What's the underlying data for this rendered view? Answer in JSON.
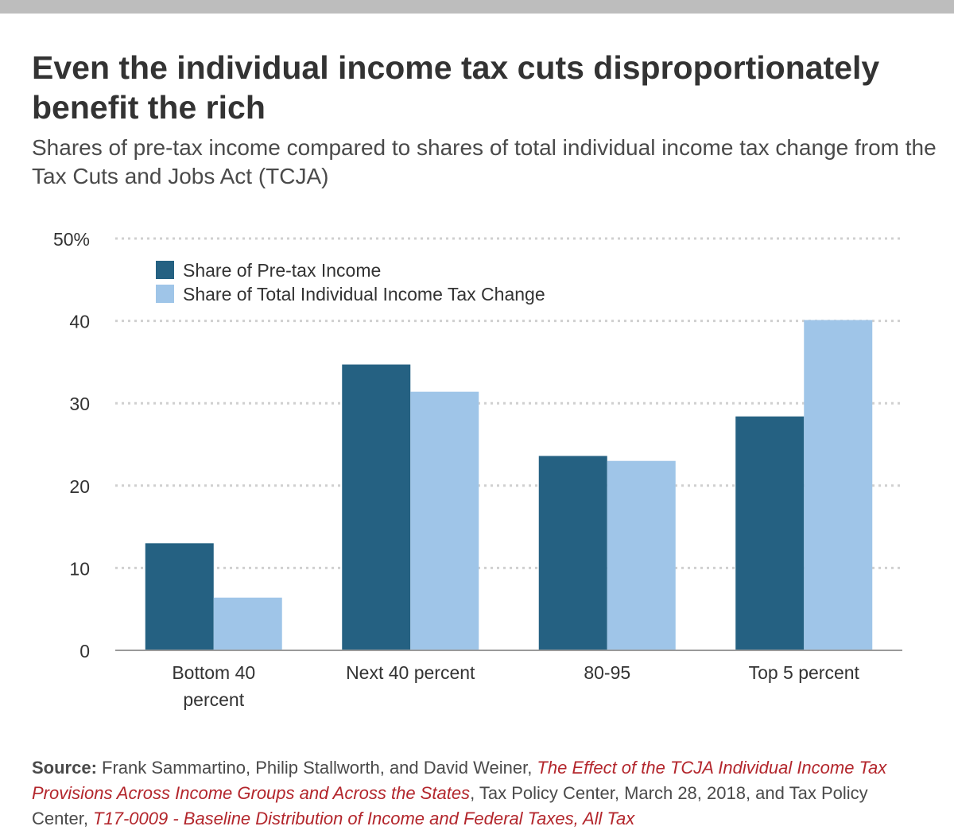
{
  "header": {
    "title": "Even the individual income tax cuts disproportionately benefit the rich",
    "subtitle": "Shares of pre-tax income compared to shares of total individual income tax change from the Tax Cuts and Jobs Act (TCJA)"
  },
  "source": {
    "label": "Source:",
    "text1": " Frank Sammartino, Philip Stallworth, and David Weiner, ",
    "ref1": "The Effect of the TCJA Individual Income Tax Provisions Across Income Groups and Across the States",
    "text2": ", Tax Policy Center, March 28, 2018, and Tax Policy Center, ",
    "ref2": "T17-0009 - Baseline Distribution of Income and Federal Taxes, All Tax"
  },
  "colors": {
    "series1": "#256182",
    "series2": "#9fc5e8",
    "grid": "#d0d0d0",
    "axis": "#9a9a9a",
    "text": "#333333"
  },
  "chart_data": {
    "type": "bar",
    "categories": [
      "Bottom 40 percent",
      "Next 40 percent",
      "80-95",
      "Top 5 percent"
    ],
    "category_lines": [
      [
        "Bottom 40",
        "percent"
      ],
      [
        "Next 40 percent"
      ],
      [
        "80-95"
      ],
      [
        "Top 5 percent"
      ]
    ],
    "series": [
      {
        "name": "Share of Pre-tax Income",
        "values": [
          13.0,
          34.7,
          23.6,
          28.4
        ]
      },
      {
        "name": "Share of Total Individual Income Tax Change",
        "values": [
          6.4,
          31.4,
          23.0,
          40.1
        ]
      }
    ],
    "yticks": [
      0,
      10,
      20,
      30,
      40,
      50
    ],
    "ytick_labels": [
      "0",
      "10",
      "20",
      "30",
      "40",
      "50%"
    ],
    "ylim": [
      0,
      50
    ],
    "xlabel": "",
    "ylabel": "",
    "grid": true,
    "legend_position": "top-left"
  }
}
